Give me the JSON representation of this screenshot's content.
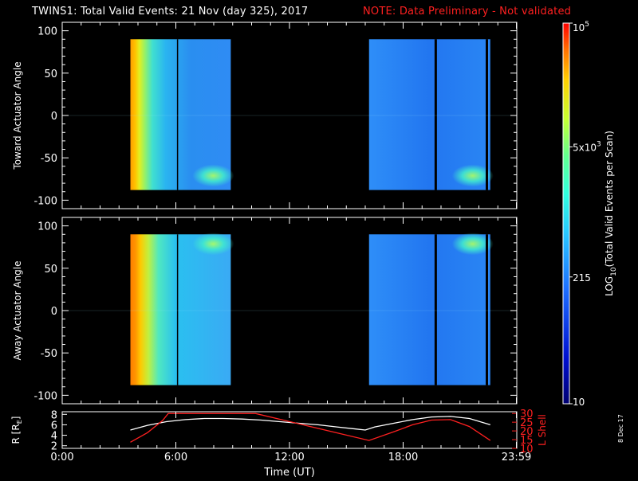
{
  "title": "TWINS1: Total Valid Events: 21 Nov (day 325), 2017",
  "note": "NOTE: Data Preliminary - Not validated",
  "date_stamp": "8 Dec 17",
  "colors": {
    "background": "#000000",
    "axes": "#ffffff",
    "note": "#ff2020",
    "lshell": "#ff2020",
    "radius": "#ffffff"
  },
  "chart_data": [
    {
      "type": "heatmap",
      "ylabel": "Toward Actuator Angle",
      "ylim": [
        -110,
        110
      ],
      "yticks": [
        100,
        50,
        0,
        -50,
        -100
      ],
      "xlim": [
        0,
        24
      ],
      "data_segments": [
        {
          "start_hour": 3.6,
          "end_hour": 8.9,
          "gap_hours": [
            6.1
          ]
        },
        {
          "start_hour": 16.2,
          "end_hour": 22.6,
          "gap_hours": [
            19.7,
            22.4
          ]
        }
      ],
      "angle_range": [
        -88,
        90
      ]
    },
    {
      "type": "heatmap",
      "ylabel": "Away Actuator Angle",
      "ylim": [
        -110,
        110
      ],
      "yticks": [
        100,
        50,
        0,
        -50,
        -100
      ],
      "xlim": [
        0,
        24
      ],
      "data_segments": [
        {
          "start_hour": 3.6,
          "end_hour": 8.9,
          "gap_hours": [
            6.1
          ]
        },
        {
          "start_hour": 16.2,
          "end_hour": 22.6,
          "gap_hours": [
            19.7,
            22.4
          ]
        }
      ],
      "angle_range": [
        -88,
        90
      ]
    },
    {
      "type": "line",
      "ylabel": "R [R",
      "ylabel_sub": "E",
      "ylabel_end": "]",
      "ylabel_right": "L Shell",
      "xlabel": "Time (UT)",
      "xlim": [
        0,
        24
      ],
      "xticks": [
        {
          "hour": 0,
          "label": "0:00"
        },
        {
          "hour": 6,
          "label": "6:00"
        },
        {
          "hour": 12,
          "label": "12:00"
        },
        {
          "hour": 18,
          "label": "18:00"
        },
        {
          "hour": 23.98,
          "label": "23:59"
        }
      ],
      "ylim_left": [
        1.5,
        8.5
      ],
      "yticks_left": [
        8,
        6,
        4,
        2
      ],
      "ylim_right": [
        10,
        31
      ],
      "yticks_right": [
        30,
        25,
        20,
        15,
        10
      ],
      "series": [
        {
          "color": "#ffffff",
          "x": [
            3.6,
            4.5,
            5.5,
            6.5,
            7.5,
            8.5,
            9.5,
            10.5,
            11.5,
            12.5,
            13.5,
            14.5,
            15.5,
            16.0,
            16.5,
            17.5,
            18.5,
            19.5,
            20.5,
            21.5,
            22.6
          ],
          "y": [
            5.0,
            5.9,
            6.6,
            7.0,
            7.2,
            7.2,
            7.1,
            6.9,
            6.6,
            6.3,
            6.0,
            5.6,
            5.2,
            5.0,
            5.6,
            6.3,
            7.0,
            7.5,
            7.6,
            7.2,
            6.0
          ]
        },
        {
          "color": "#ff2020",
          "x": [
            3.6,
            4.5,
            5.3,
            5.6,
            10.2,
            16.2,
            17.5,
            18.5,
            19.5,
            20.5,
            21.5,
            22.6
          ],
          "y": [
            13.5,
            19,
            26,
            30,
            30,
            14.5,
            19.5,
            23.5,
            26.2,
            26.5,
            22.5,
            14.5
          ]
        }
      ]
    }
  ],
  "colorbar": {
    "label_pre": "LOG",
    "label_sub": "10",
    "label_post": "(Total Valid Events per Scan)",
    "ticks": [
      {
        "value": 100000,
        "base": "10",
        "sup": "5"
      },
      {
        "value": 5000,
        "base": "5x10",
        "sup": "3"
      },
      {
        "value": 215,
        "base": "215",
        "sup": ""
      },
      {
        "value": 10,
        "base": "10",
        "sup": ""
      }
    ],
    "range": [
      10,
      100000
    ],
    "scale": "log"
  }
}
